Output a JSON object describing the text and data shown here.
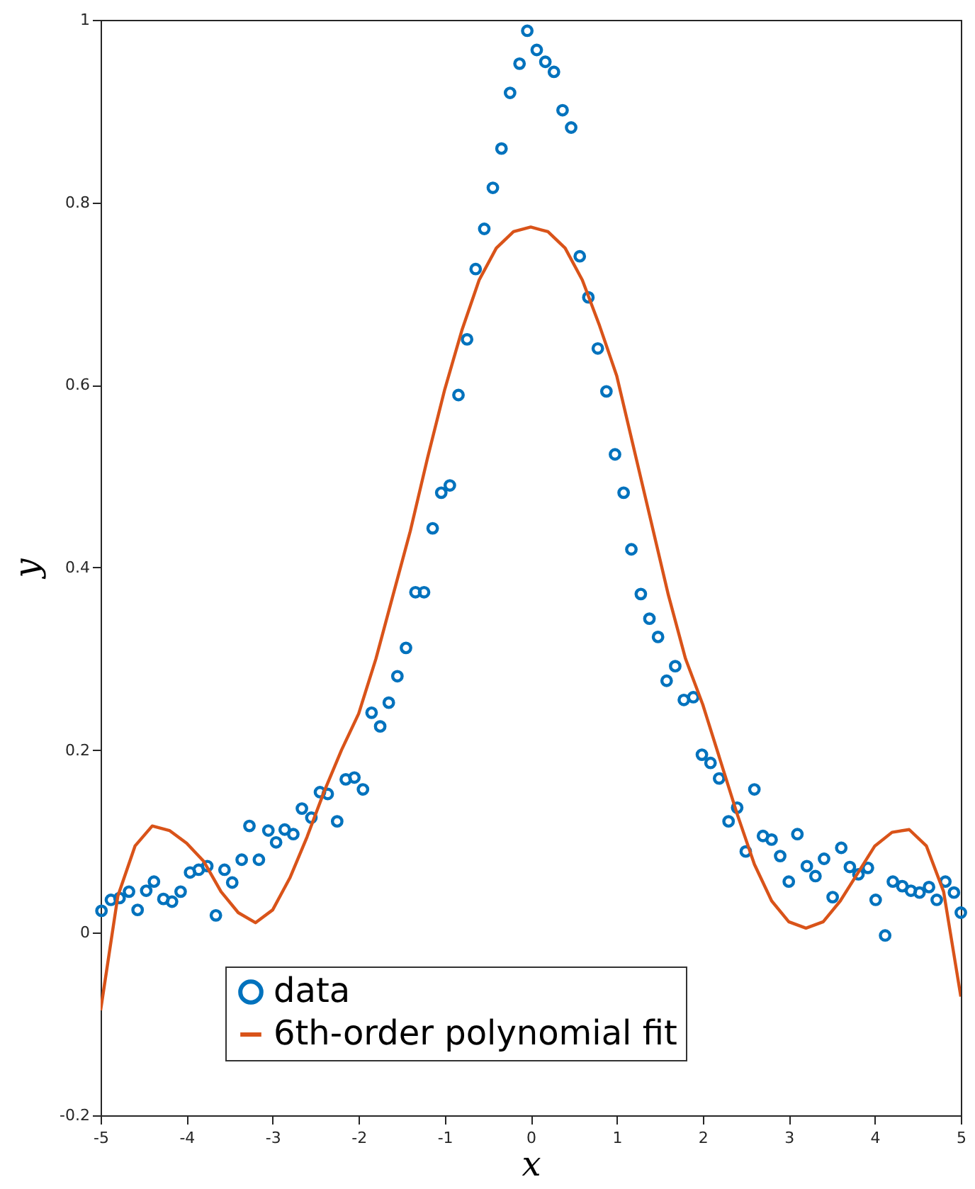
{
  "chart_data": {
    "type": "scatter",
    "xlabel": "x",
    "ylabel": "y",
    "xlim": [
      -5,
      5
    ],
    "ylim": [
      -0.2,
      1
    ],
    "xticks": [
      -5,
      -4,
      -3,
      -2,
      -1,
      0,
      1,
      2,
      3,
      4,
      5
    ],
    "yticks": [
      -0.2,
      0,
      0.2,
      0.4,
      0.6,
      0.8,
      1
    ],
    "grid": false,
    "legend": "bottom",
    "series": [
      {
        "name": "data",
        "marker": "circle",
        "color": "#0072bd",
        "x": [
          -4.99,
          -4.88,
          -4.78,
          -4.67,
          -4.57,
          -4.47,
          -4.38,
          -4.27,
          -4.17,
          -4.07,
          -3.96,
          -3.86,
          -3.76,
          -3.66,
          -3.56,
          -3.47,
          -3.36,
          -3.27,
          -3.16,
          -3.05,
          -2.96,
          -2.86,
          -2.76,
          -2.66,
          -2.55,
          -2.45,
          -2.36,
          -2.25,
          -2.15,
          -2.05,
          -1.95,
          -1.85,
          -1.75,
          -1.65,
          -1.55,
          -1.45,
          -1.34,
          -1.24,
          -1.14,
          -1.04,
          -0.94,
          -0.84,
          -0.74,
          -0.64,
          -0.54,
          -0.44,
          -0.34,
          -0.24,
          -0.13,
          -0.04,
          0.07,
          0.17,
          0.27,
          0.37,
          0.47,
          0.57,
          0.67,
          0.78,
          0.88,
          0.98,
          1.08,
          1.17,
          1.28,
          1.38,
          1.48,
          1.58,
          1.68,
          1.78,
          1.89,
          1.99,
          2.09,
          2.19,
          2.3,
          2.4,
          2.5,
          2.6,
          2.7,
          2.8,
          2.9,
          3.0,
          3.1,
          3.21,
          3.31,
          3.41,
          3.51,
          3.61,
          3.71,
          3.81,
          3.92,
          4.01,
          4.12,
          4.21,
          4.32,
          4.42,
          4.52,
          4.63,
          4.72,
          4.82,
          4.92,
          5.0
        ],
        "values": [
          0.024,
          0.036,
          0.038,
          0.045,
          0.025,
          0.046,
          0.056,
          0.037,
          0.034,
          0.045,
          0.066,
          0.069,
          0.073,
          0.019,
          0.069,
          0.055,
          0.08,
          0.117,
          0.08,
          0.112,
          0.099,
          0.113,
          0.108,
          0.136,
          0.126,
          0.154,
          0.152,
          0.122,
          0.168,
          0.17,
          0.157,
          0.241,
          0.226,
          0.252,
          0.281,
          0.312,
          0.373,
          0.373,
          0.443,
          0.482,
          0.49,
          0.589,
          0.65,
          0.727,
          0.771,
          0.816,
          0.859,
          0.92,
          0.952,
          0.988,
          0.967,
          0.954,
          0.943,
          0.901,
          0.882,
          0.741,
          0.696,
          0.64,
          0.593,
          0.524,
          0.482,
          0.42,
          0.371,
          0.344,
          0.324,
          0.276,
          0.292,
          0.255,
          0.258,
          0.195,
          0.186,
          0.169,
          0.122,
          0.137,
          0.089,
          0.157,
          0.106,
          0.102,
          0.084,
          0.056,
          0.108,
          0.073,
          0.062,
          0.081,
          0.039,
          0.093,
          0.072,
          0.064,
          0.071,
          0.036,
          -0.003,
          0.056,
          0.051,
          0.046,
          0.044,
          0.05,
          0.036,
          0.056,
          0.044,
          0.022
        ]
      },
      {
        "name": "6th-order polynomial fit",
        "type": "line",
        "color": "#d95319",
        "x": [
          -5,
          -4.8,
          -4.6,
          -4.4,
          -4.2,
          -4.0,
          -3.8,
          -3.6,
          -3.4,
          -3.2,
          -3.0,
          -2.8,
          -2.6,
          -2.4,
          -2.2,
          -2.0,
          -1.8,
          -1.6,
          -1.4,
          -1.2,
          -1.0,
          -0.8,
          -0.6,
          -0.4,
          -0.2,
          0,
          0.2,
          0.4,
          0.6,
          0.8,
          1.0,
          1.2,
          1.4,
          1.6,
          1.8,
          2.0,
          2.2,
          2.4,
          2.6,
          2.8,
          3.0,
          3.2,
          3.4,
          3.6,
          3.8,
          4.0,
          4.2,
          4.4,
          4.6,
          4.8,
          5.0
        ],
        "values": [
          -0.085,
          0.04,
          0.095,
          0.117,
          0.112,
          0.098,
          0.078,
          0.045,
          0.022,
          0.011,
          0.025,
          0.06,
          0.105,
          0.155,
          0.2,
          0.24,
          0.3,
          0.37,
          0.44,
          0.52,
          0.595,
          0.66,
          0.715,
          0.75,
          0.768,
          0.773,
          0.768,
          0.75,
          0.715,
          0.665,
          0.61,
          0.53,
          0.45,
          0.37,
          0.3,
          0.25,
          0.19,
          0.13,
          0.075,
          0.035,
          0.012,
          0.005,
          0.012,
          0.035,
          0.065,
          0.095,
          0.11,
          0.113,
          0.095,
          0.045,
          -0.07
        ]
      }
    ]
  }
}
